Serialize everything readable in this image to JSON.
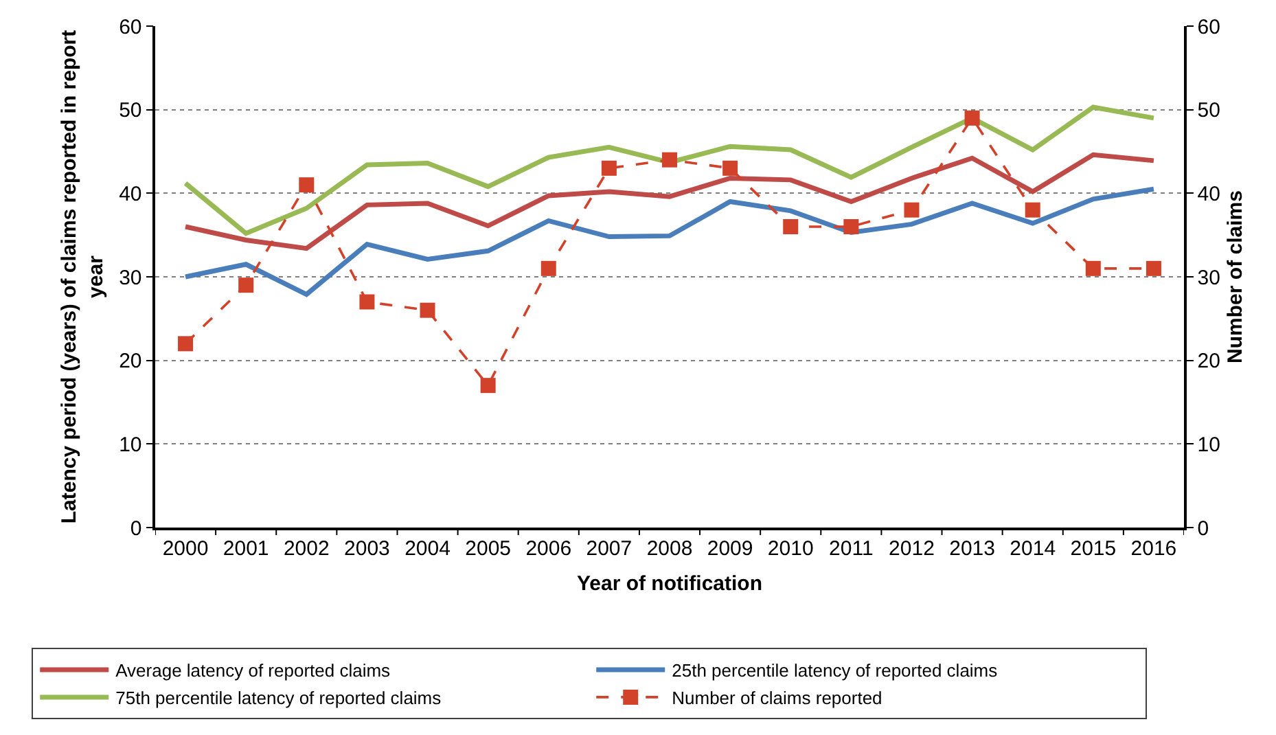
{
  "chart_data": {
    "type": "line",
    "xlabel": "Year of notification",
    "ylabel": "Latency period (years) of claims reported in report year",
    "y2label": "Number of claims",
    "categories": [
      "2000",
      "2001",
      "2002",
      "2003",
      "2004",
      "2005",
      "2006",
      "2007",
      "2008",
      "2009",
      "2010",
      "2011",
      "2012",
      "2013",
      "2014",
      "2015",
      "2016"
    ],
    "ylim": [
      0,
      60
    ],
    "yticks": [
      0,
      10,
      20,
      30,
      40,
      50,
      60
    ],
    "y2lim": [
      0,
      60
    ],
    "y2ticks": [
      0,
      10,
      20,
      30,
      40,
      50,
      60
    ],
    "grid": "y",
    "legend": "bottom",
    "series": [
      {
        "name": "Average latency of reported claims",
        "color": "#be4b48",
        "values": [
          36.0,
          34.4,
          33.4,
          38.6,
          38.8,
          36.1,
          39.7,
          40.2,
          39.6,
          41.8,
          41.6,
          39.0,
          41.8,
          44.2,
          40.2,
          44.6,
          43.9
        ]
      },
      {
        "name": "25th percentile latency of reported claims",
        "color": "#4a7ebb",
        "values": [
          30.0,
          31.5,
          27.9,
          33.9,
          32.1,
          33.1,
          36.7,
          34.8,
          34.9,
          39.0,
          37.9,
          35.3,
          36.3,
          38.8,
          36.4,
          39.3,
          40.5
        ]
      },
      {
        "name": "75th percentile latency of reported claims",
        "color": "#98b954",
        "values": [
          41.2,
          35.2,
          38.2,
          43.4,
          43.6,
          40.8,
          44.3,
          45.5,
          43.7,
          45.6,
          45.2,
          41.9,
          45.5,
          49.0,
          45.2,
          50.3,
          49.0
        ]
      },
      {
        "name": "Number of claims reported",
        "color": "#d2412a",
        "axis": "y2",
        "marker": "square",
        "line_style": "dashed",
        "values": [
          22,
          29,
          41,
          27,
          26,
          17,
          31,
          43,
          44,
          43,
          36,
          36,
          38,
          49,
          38,
          31,
          31
        ]
      }
    ]
  }
}
